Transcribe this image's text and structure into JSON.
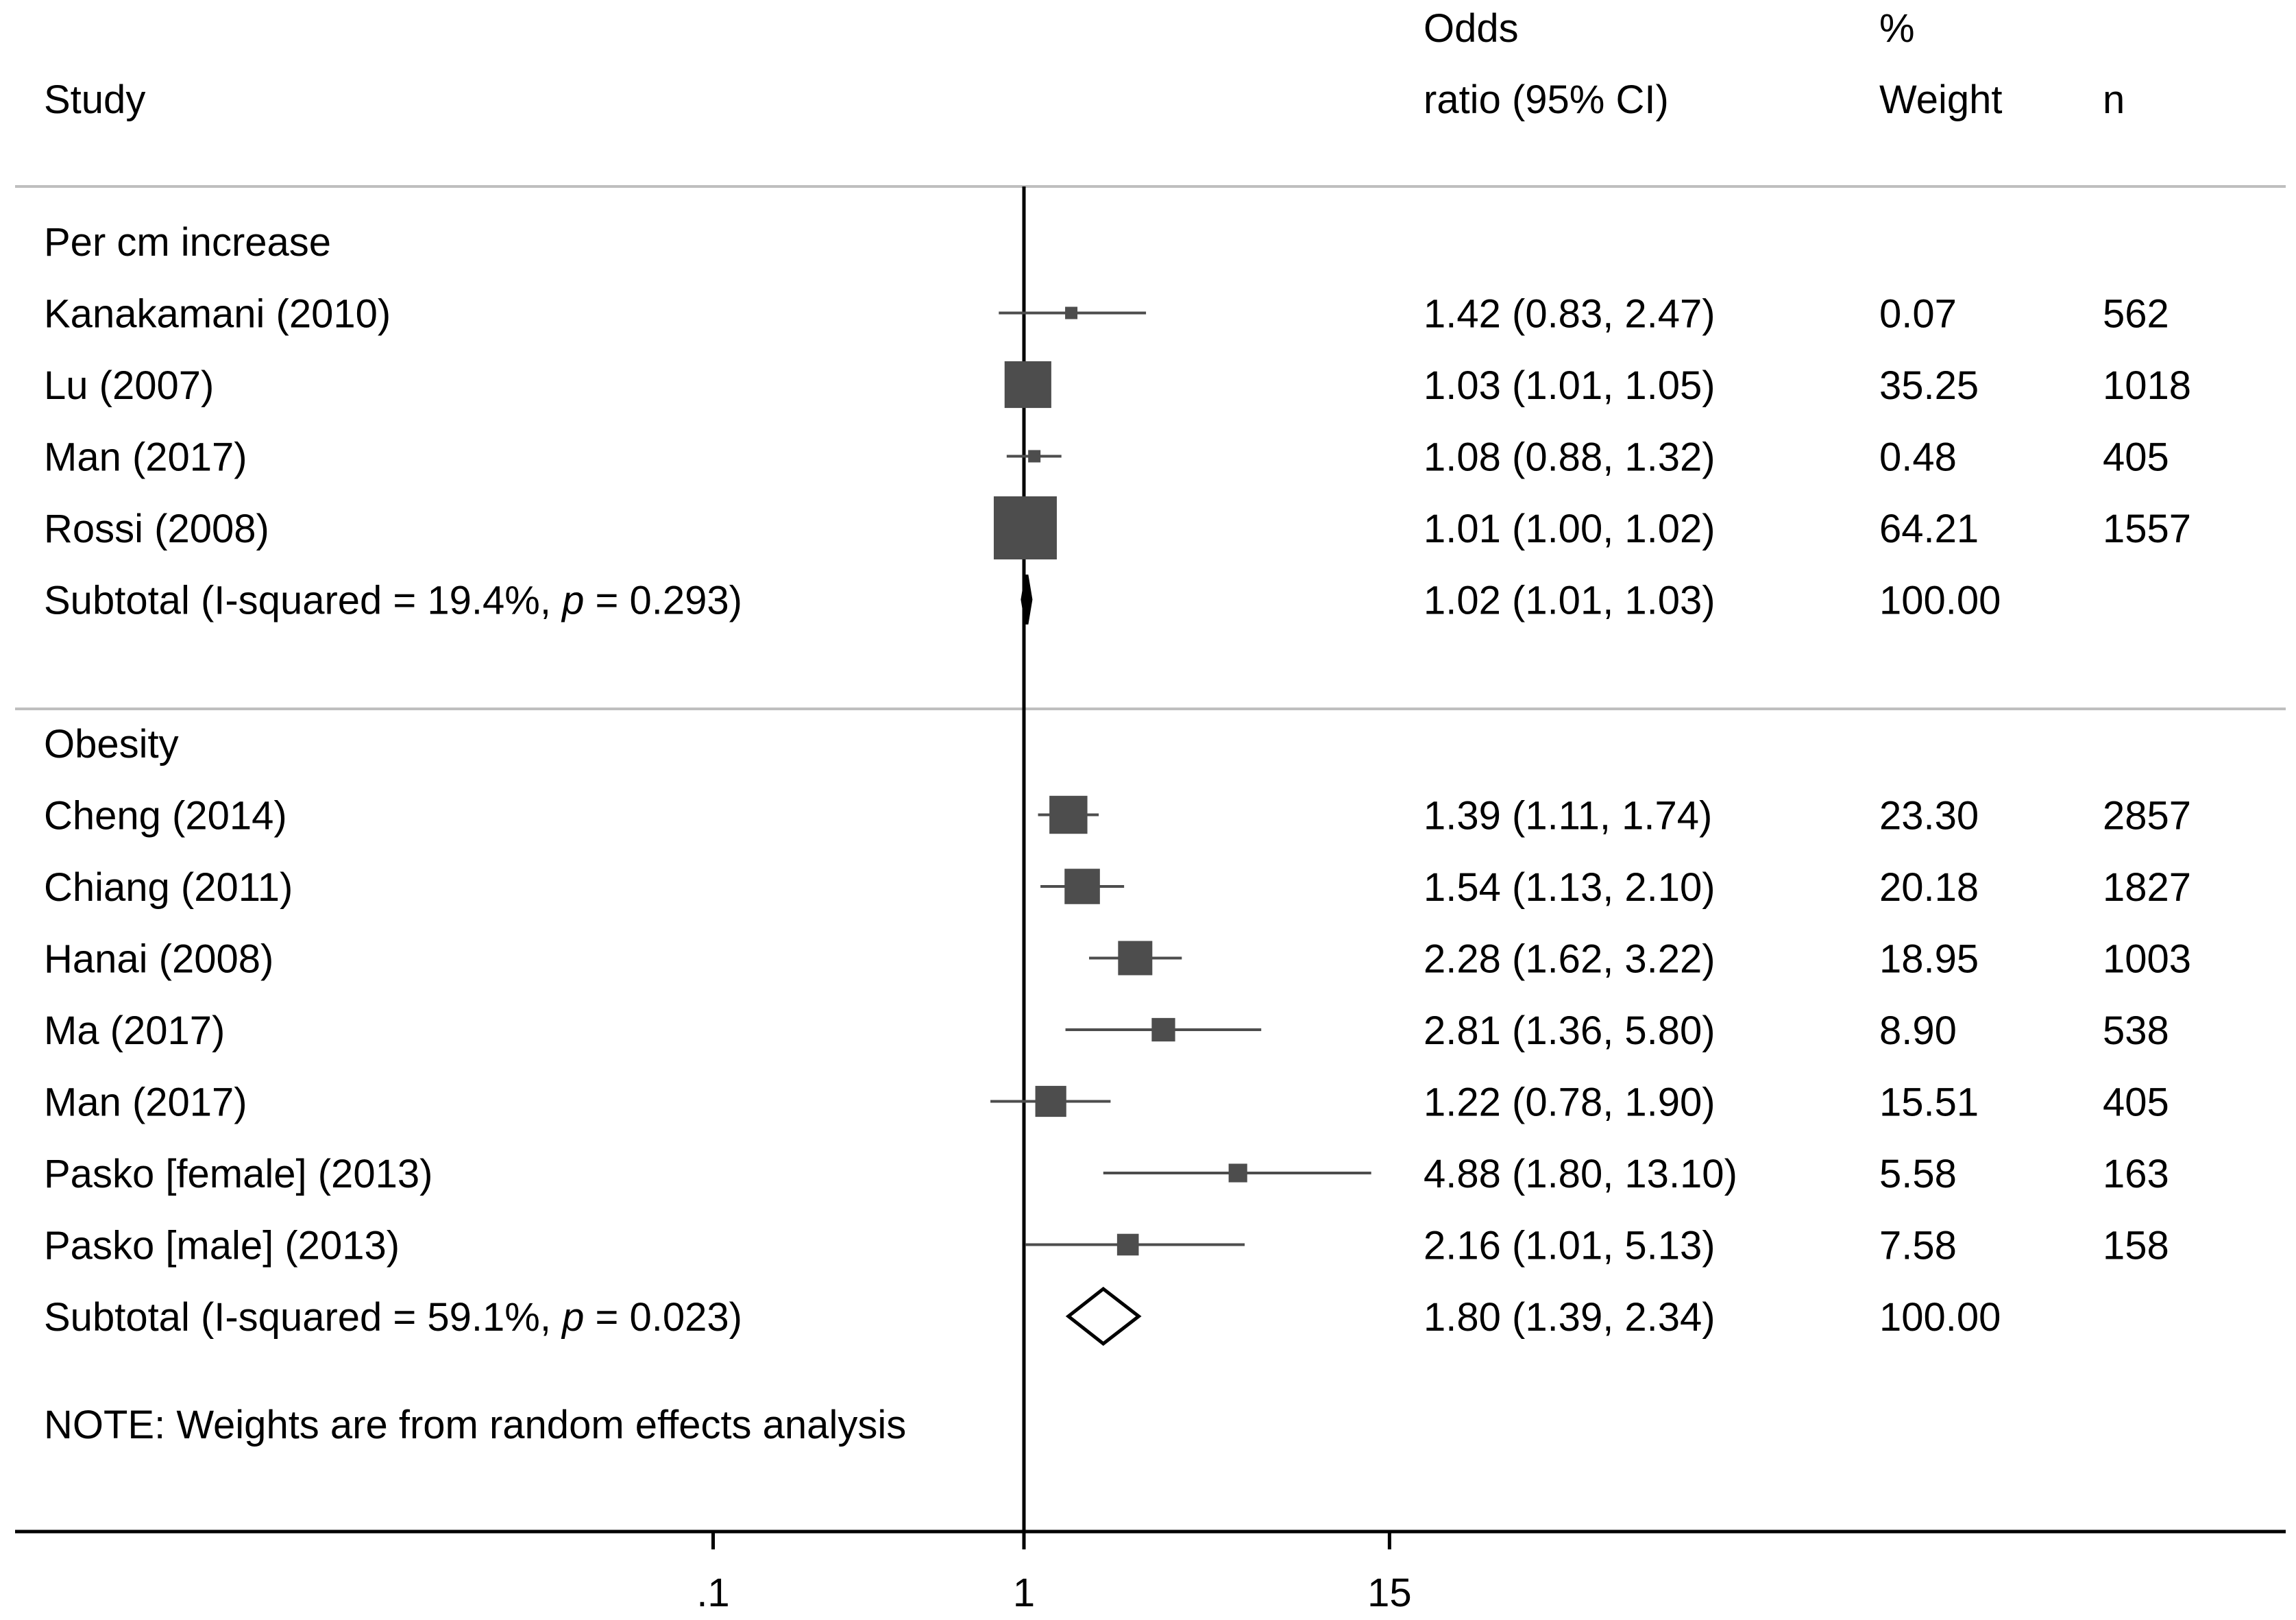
{
  "chart_data": {
    "type": "forest",
    "x_scale": "log",
    "reference_value": 1,
    "x_ticks": [
      {
        "value": 0.1,
        "label": ".1"
      },
      {
        "value": 1,
        "label": "1"
      },
      {
        "value": 15,
        "label": "15"
      }
    ],
    "headers": {
      "study": "Study",
      "or_line1": "Odds",
      "or_line2": "ratio (95% CI)",
      "weight_line1": "%",
      "weight_line2": "Weight",
      "n": "n"
    },
    "p_symbol": "p",
    "groups": [
      {
        "label": "Per cm increase",
        "studies": [
          {
            "name": "Kanakamani (2010)",
            "or": 1.42,
            "lo": 0.83,
            "hi": 2.47,
            "or_text": "1.42 (0.83, 2.47)",
            "weight": 0.07,
            "weight_text": "0.07",
            "n": "562"
          },
          {
            "name": "Lu (2007)",
            "or": 1.03,
            "lo": 1.01,
            "hi": 1.05,
            "or_text": "1.03 (1.01, 1.05)",
            "weight": 35.25,
            "weight_text": "35.25",
            "n": "1018"
          },
          {
            "name": "Man (2017)",
            "or": 1.08,
            "lo": 0.88,
            "hi": 1.32,
            "or_text": "1.08 (0.88, 1.32)",
            "weight": 0.48,
            "weight_text": "0.48",
            "n": "405"
          },
          {
            "name": "Rossi (2008)",
            "or": 1.01,
            "lo": 1.0,
            "hi": 1.02,
            "or_text": "1.01 (1.00, 1.02)",
            "weight": 64.21,
            "weight_text": "64.21",
            "n": "1557"
          }
        ],
        "subtotal": {
          "label_pre": "Subtotal  (I-squared = 19.4%, ",
          "label_post": " = 0.293)",
          "or": 1.02,
          "lo": 1.01,
          "hi": 1.03,
          "or_text": "1.02 (1.01, 1.03)",
          "weight_text": "100.00"
        }
      },
      {
        "label": "Obesity",
        "studies": [
          {
            "name": "Cheng (2014)",
            "or": 1.39,
            "lo": 1.11,
            "hi": 1.74,
            "or_text": "1.39 (1.11, 1.74)",
            "weight": 23.3,
            "weight_text": "23.30",
            "n": "2857"
          },
          {
            "name": "Chiang (2011)",
            "or": 1.54,
            "lo": 1.13,
            "hi": 2.1,
            "or_text": "1.54 (1.13, 2.10)",
            "weight": 20.18,
            "weight_text": "20.18",
            "n": "1827"
          },
          {
            "name": "Hanai (2008)",
            "or": 2.28,
            "lo": 1.62,
            "hi": 3.22,
            "or_text": "2.28 (1.62, 3.22)",
            "weight": 18.95,
            "weight_text": "18.95",
            "n": "1003"
          },
          {
            "name": "Ma (2017)",
            "or": 2.81,
            "lo": 1.36,
            "hi": 5.8,
            "or_text": "2.81 (1.36, 5.80)",
            "weight": 8.9,
            "weight_text": "8.90",
            "n": "538"
          },
          {
            "name": "Man (2017)",
            "or": 1.22,
            "lo": 0.78,
            "hi": 1.9,
            "or_text": "1.22 (0.78, 1.90)",
            "weight": 15.51,
            "weight_text": "15.51",
            "n": "405"
          },
          {
            "name": "Pasko [female] (2013)",
            "or": 4.88,
            "lo": 1.8,
            "hi": 13.1,
            "or_text": "4.88 (1.80, 13.10)",
            "weight": 5.58,
            "weight_text": "5.58",
            "n": "163"
          },
          {
            "name": "Pasko [male] (2013)",
            "or": 2.16,
            "lo": 1.01,
            "hi": 5.13,
            "or_text": "2.16 (1.01, 5.13)",
            "weight": 7.58,
            "weight_text": "7.58",
            "n": "158"
          }
        ],
        "subtotal": {
          "label_pre": "Subtotal  (I-squared = 59.1%, ",
          "label_post": " = 0.023)",
          "or": 1.8,
          "lo": 1.39,
          "hi": 2.34,
          "or_text": "1.80 (1.39, 2.34)",
          "weight_text": "100.00"
        }
      }
    ],
    "note": "NOTE: Weights are from random effects analysis",
    "colors": {
      "marker": "#4d4d4d",
      "line": "#000000",
      "ci_line": "#4d4d4d",
      "separator": "#bfbfbf"
    }
  }
}
